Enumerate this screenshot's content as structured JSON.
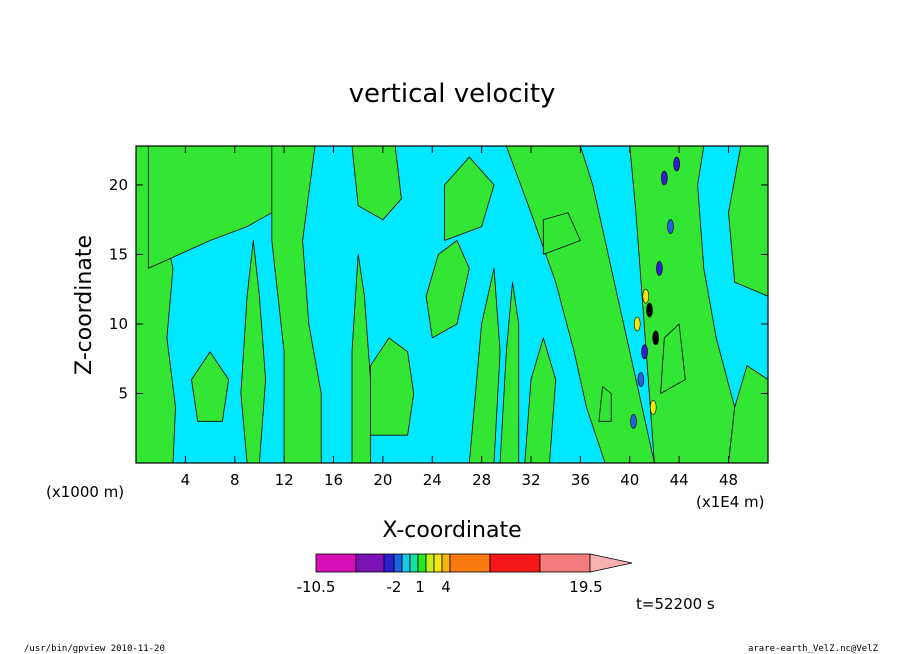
{
  "chart_data": {
    "type": "heatmap",
    "title": "vertical velocity",
    "xlabel": "X-coordinate",
    "ylabel": "Z-coordinate",
    "x_ticks": [
      "4",
      "8",
      "12",
      "16",
      "20",
      "24",
      "28",
      "32",
      "36",
      "40",
      "44",
      "48"
    ],
    "x_tick_values": [
      4,
      8,
      12,
      16,
      20,
      24,
      28,
      32,
      36,
      40,
      44,
      48
    ],
    "y_ticks": [
      "5",
      "10",
      "15",
      "20"
    ],
    "y_tick_values": [
      5,
      10,
      15,
      20
    ],
    "xlim": [
      0,
      51.2
    ],
    "ylim": [
      0,
      22.8
    ],
    "x_unit_left": "(x1000 m)",
    "x_unit_right": "(x1E4 m)",
    "colorbar": {
      "labels": [
        "-10.5",
        "-2",
        "1",
        "4",
        "19.5"
      ],
      "label_values": [
        -10.5,
        -2,
        1,
        4,
        19.5
      ],
      "colors": [
        "#d60fb6",
        "#7b12b8",
        "#2b1fd0",
        "#1d62e0",
        "#16c8e6",
        "#12e3a2",
        "#28e81c",
        "#c6f01a",
        "#f5e612",
        "#f7b512",
        "#fb7a10",
        "#f41818",
        "#f47c7c",
        "#f9b2b2"
      ]
    },
    "time_label": "t=52200 s",
    "dominant_fields": [
      {
        "name": "cyan",
        "color": "#00e8ff"
      },
      {
        "name": "green",
        "color": "#33e633"
      }
    ]
  },
  "footer": {
    "left": "/usr/bin/gpview 2010-11-20",
    "right": "arare-earth_VelZ.nc@VelZ"
  }
}
